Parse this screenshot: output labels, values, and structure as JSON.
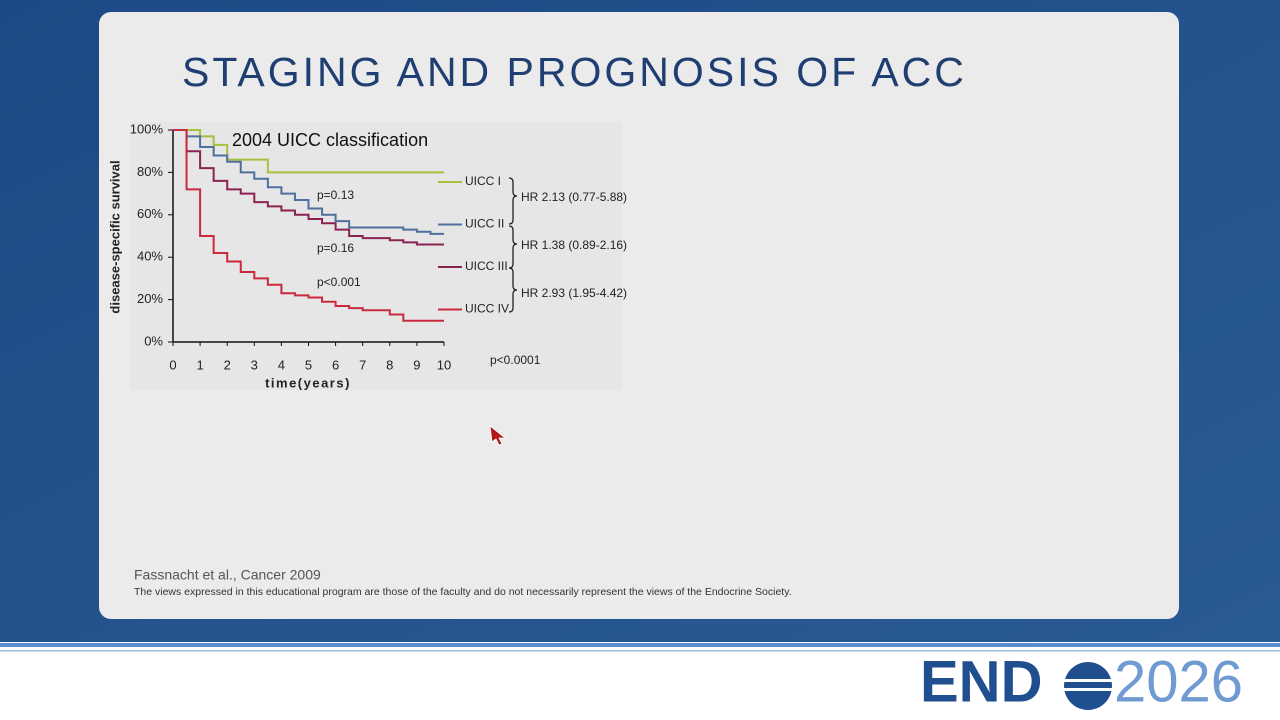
{
  "slide": {
    "title": "STAGING AND PROGNOSIS OF ACC",
    "citation": "Fassnacht et al., Cancer 2009",
    "disclaimer": "The views expressed in this educational program are those of the faculty and do not necessarily represent the views of the Endocrine Society."
  },
  "logo": {
    "left": "END",
    "right": "2026"
  },
  "chart_data": {
    "type": "line",
    "step": true,
    "title": "2004 UICC classification",
    "x_label": "time(years)",
    "y_label": "disease-specific survival",
    "x": [
      0,
      0.5,
      1,
      1.5,
      2,
      2.5,
      3,
      3.5,
      4,
      4.5,
      5,
      5.5,
      6,
      6.5,
      7,
      7.5,
      8,
      8.5,
      9,
      9.5,
      10
    ],
    "series": [
      {
        "name": "UICC I",
        "color": "#a6c13c",
        "values": [
          100,
          100,
          97,
          93,
          86,
          86,
          86,
          80,
          80,
          80,
          80,
          80,
          80,
          80,
          80,
          80,
          80,
          80,
          80,
          80,
          80
        ]
      },
      {
        "name": "UICC II",
        "color": "#4f6f9c",
        "values": [
          100,
          97,
          92,
          88,
          85,
          80,
          77,
          73,
          70,
          67,
          63,
          60,
          57,
          54,
          54,
          54,
          54,
          53,
          52,
          51,
          51
        ]
      },
      {
        "name": "UICC III",
        "color": "#8a2350",
        "values": [
          100,
          90,
          82,
          76,
          72,
          70,
          66,
          64,
          62,
          60,
          58,
          56,
          53,
          50,
          49,
          49,
          48,
          47,
          46,
          46,
          46
        ]
      },
      {
        "name": "UICC IV",
        "color": "#c92a3e",
        "values": [
          100,
          72,
          50,
          42,
          38,
          33,
          30,
          27,
          23,
          22,
          21,
          19,
          17,
          16,
          15,
          15,
          13,
          10,
          10,
          10,
          10
        ]
      }
    ],
    "xlim": [
      0,
      10
    ],
    "xticks": [
      0,
      1,
      2,
      3,
      4,
      5,
      6,
      7,
      8,
      9,
      10
    ],
    "ylim": [
      0,
      100
    ],
    "yticks": [
      {
        "value": 0,
        "label": "0%"
      },
      {
        "value": 20,
        "label": "20%"
      },
      {
        "value": 40,
        "label": "40%"
      },
      {
        "value": 60,
        "label": "60%"
      },
      {
        "value": 80,
        "label": "80%"
      },
      {
        "value": 100,
        "label": "100%"
      }
    ],
    "annotations": [
      "p=0.13",
      "p=0.16",
      "p<0.001",
      "p<0.0001",
      "HR 2.13 (0.77-5.88)",
      "HR 1.38 (0.89-2.16)",
      "HR 2.93 (1.95-4.42)"
    ]
  }
}
